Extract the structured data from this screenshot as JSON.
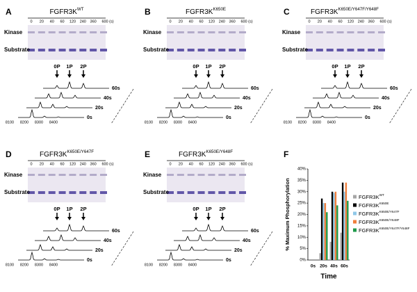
{
  "gel_lanes": [
    "0",
    "20",
    "40",
    "60",
    "120",
    "240",
    "360",
    "600 (s)"
  ],
  "kinase_label": "Kinase",
  "substrate_label": "Substrate",
  "peak_labels": [
    "0P",
    "1P",
    "2P"
  ],
  "trace_times": [
    "60s",
    "40s",
    "20s",
    "0s"
  ],
  "mz_ticks": [
    "8100",
    "8200",
    "8300",
    "8400"
  ],
  "panels": [
    {
      "letter": "A",
      "title_base": "FGFR3K",
      "title_sup": "WT"
    },
    {
      "letter": "B",
      "title_base": "FGFR3K",
      "title_sup": "K650E"
    },
    {
      "letter": "C",
      "title_base": "FGFR3K",
      "title_sup": "K650E/Y647F/Y648F"
    },
    {
      "letter": "D",
      "title_base": "FGFR3K",
      "title_sup": "K650E/Y647F"
    },
    {
      "letter": "E",
      "title_base": "FGFR3K",
      "title_sup": "K650E/Y648F"
    }
  ],
  "chart_data": {
    "type": "bar",
    "letter": "F",
    "y_label": "% Maximum Phosphorylation",
    "x_label": "Time",
    "categories": [
      "0s",
      "20s",
      "40s",
      "60s"
    ],
    "series": [
      {
        "name": "FGFR3K",
        "sup": "WT",
        "color": "#a6a6a6",
        "values": [
          0,
          3,
          8,
          12
        ]
      },
      {
        "name": "FGFR3K",
        "sup": "K650E",
        "color": "#000000",
        "values": [
          0,
          27,
          30,
          34
        ]
      },
      {
        "name": "FGFR3K",
        "sup": "K650E/Y647F",
        "color": "#8fc8e8",
        "values": [
          0,
          25,
          29.5,
          30
        ]
      },
      {
        "name": "FGFR3K",
        "sup": "K650E/Y648F",
        "color": "#f07f3c",
        "values": [
          0,
          25,
          30,
          34
        ]
      },
      {
        "name": "FGFR3K",
        "sup": "K650E/Y647F/Y648F",
        "color": "#1f9a4a",
        "values": [
          0,
          21,
          24,
          26
        ]
      }
    ],
    "ylim": [
      0,
      40
    ],
    "yticks": [
      {
        "value": 0,
        "label": "0%"
      },
      {
        "value": 5,
        "label": "5%"
      },
      {
        "value": 10,
        "label": "10%"
      },
      {
        "value": 15,
        "label": "15%"
      },
      {
        "value": 20,
        "label": "20%"
      },
      {
        "value": 25,
        "label": "25%"
      },
      {
        "value": 30,
        "label": "30%"
      },
      {
        "value": 35,
        "label": "35%"
      },
      {
        "value": 40,
        "label": "40%"
      }
    ]
  }
}
